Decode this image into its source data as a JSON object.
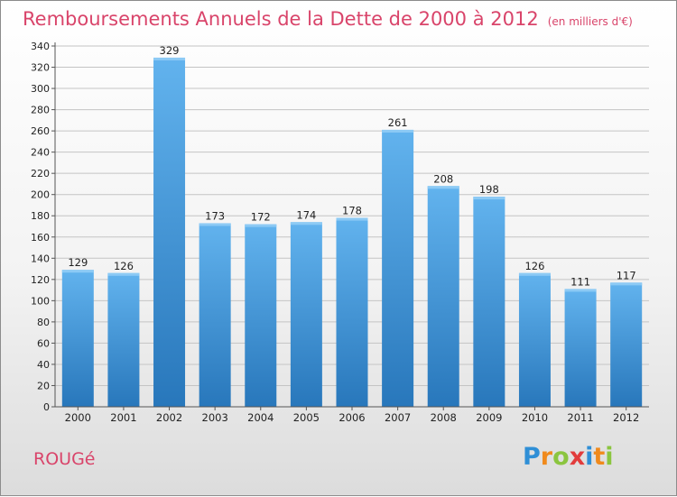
{
  "title": "Remboursements Annuels de la Dette de 2000 à 2012",
  "unit_label": "(en milliers d'€)",
  "commune": "ROUGé",
  "logo_text": "Proxiti",
  "colors": {
    "title": "#d9446a",
    "bar_light": "#5fb0ec",
    "bar_dark": "#2a7fc2",
    "grid": "#bcbcbc"
  },
  "chart_data": {
    "type": "bar",
    "title": "Remboursements Annuels de la Dette de 2000 à 2012",
    "xlabel": "",
    "ylabel": "",
    "categories": [
      "2000",
      "2001",
      "2002",
      "2003",
      "2004",
      "2005",
      "2006",
      "2007",
      "2008",
      "2009",
      "2010",
      "2011",
      "2012"
    ],
    "values": [
      129,
      126,
      329,
      173,
      172,
      174,
      178,
      261,
      208,
      198,
      126,
      111,
      117
    ],
    "ylim": [
      0,
      340
    ],
    "yticks": [
      0,
      20,
      40,
      60,
      80,
      100,
      120,
      140,
      160,
      180,
      200,
      220,
      240,
      260,
      280,
      300,
      320,
      340
    ],
    "grid": true,
    "data_labels": true
  }
}
